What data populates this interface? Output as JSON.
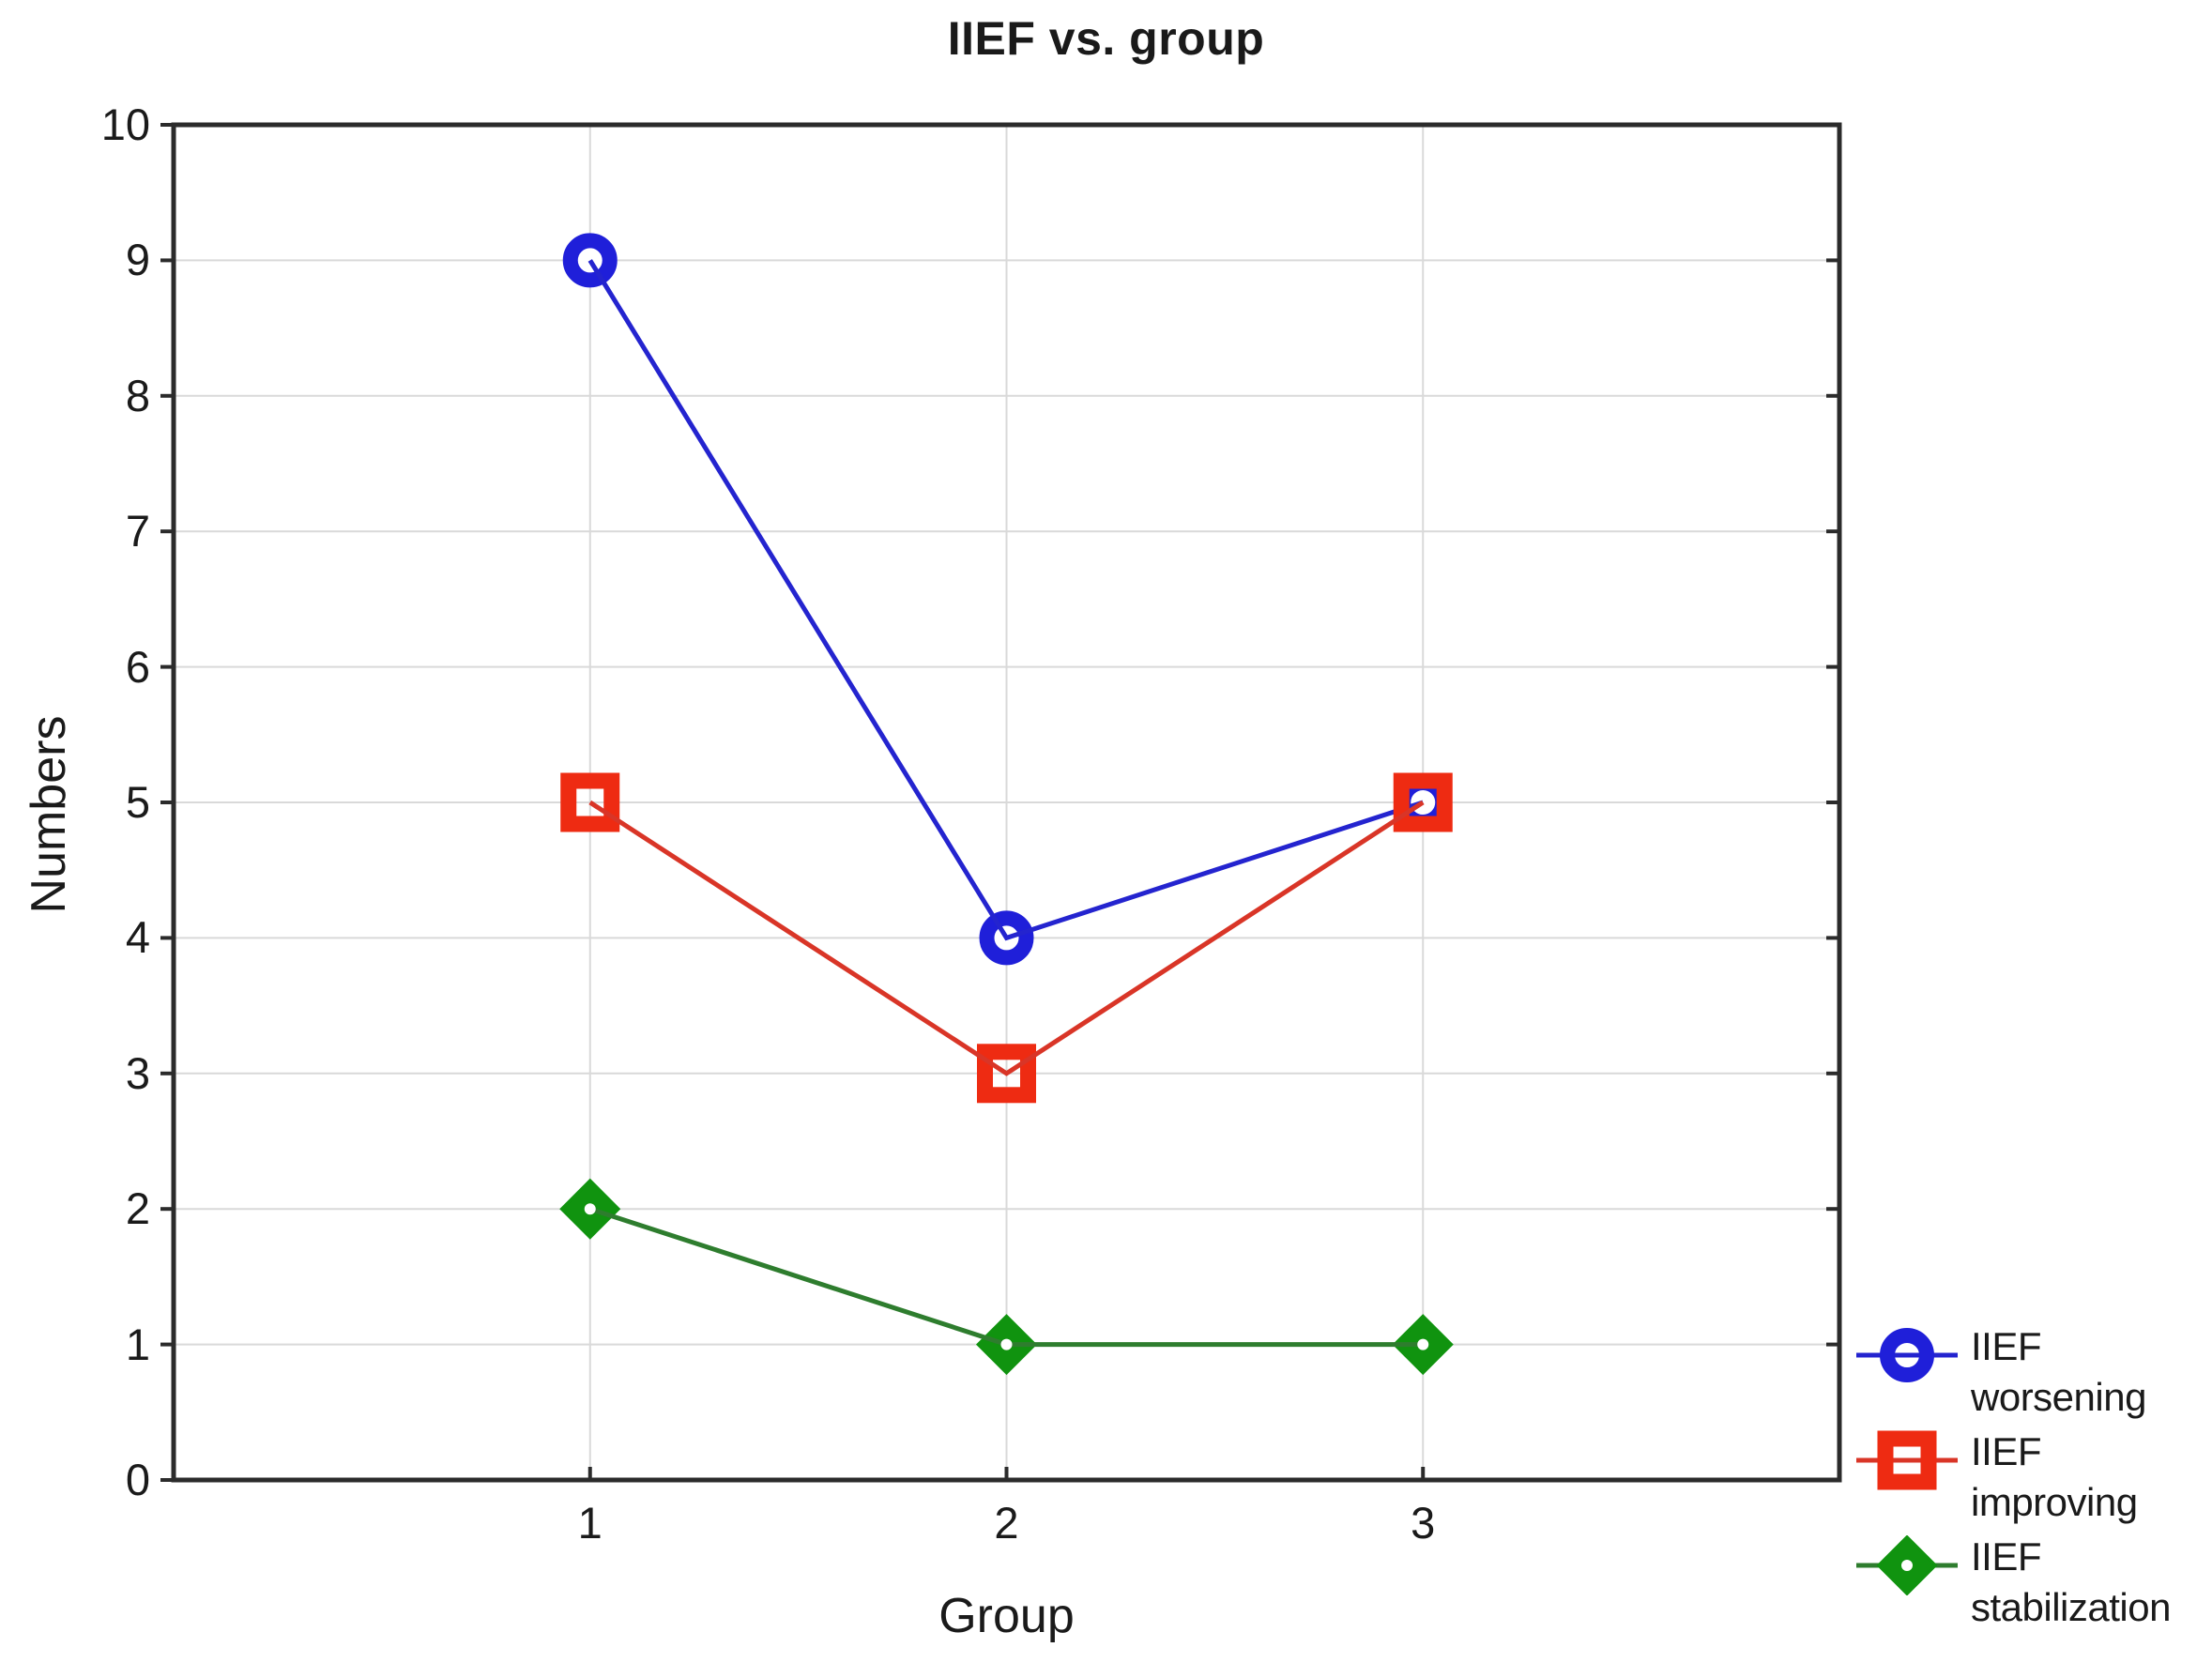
{
  "chart_data": {
    "type": "line",
    "title": "IIEF vs. group",
    "xlabel": "Group",
    "ylabel": "Numbers",
    "categories": [
      "1",
      "2",
      "3"
    ],
    "series": [
      {
        "name": "IIEF worsening",
        "marker": "circle",
        "marker_color": "#1f1fd9",
        "line_color": "#2424cf",
        "values": [
          9,
          4,
          5
        ]
      },
      {
        "name": "IIEF improving",
        "marker": "square",
        "marker_color": "#ee2b12",
        "line_color": "#d93527",
        "values": [
          5,
          3,
          5
        ]
      },
      {
        "name": "IIEF stabilization",
        "marker": "diamond",
        "marker_color": "#10930f",
        "line_color": "#2e7d2e",
        "values": [
          2,
          1,
          1
        ]
      }
    ],
    "ylim": [
      0,
      10
    ],
    "y_ticks": [
      0,
      1,
      2,
      3,
      4,
      5,
      6,
      7,
      8,
      9,
      10
    ],
    "grid": true,
    "legend_position": "bottom-right",
    "colors": {
      "axis": "#2b2b2b",
      "gridline": "#d9d9d9",
      "background": "#ffffff",
      "text": "#1a1a1a"
    }
  }
}
